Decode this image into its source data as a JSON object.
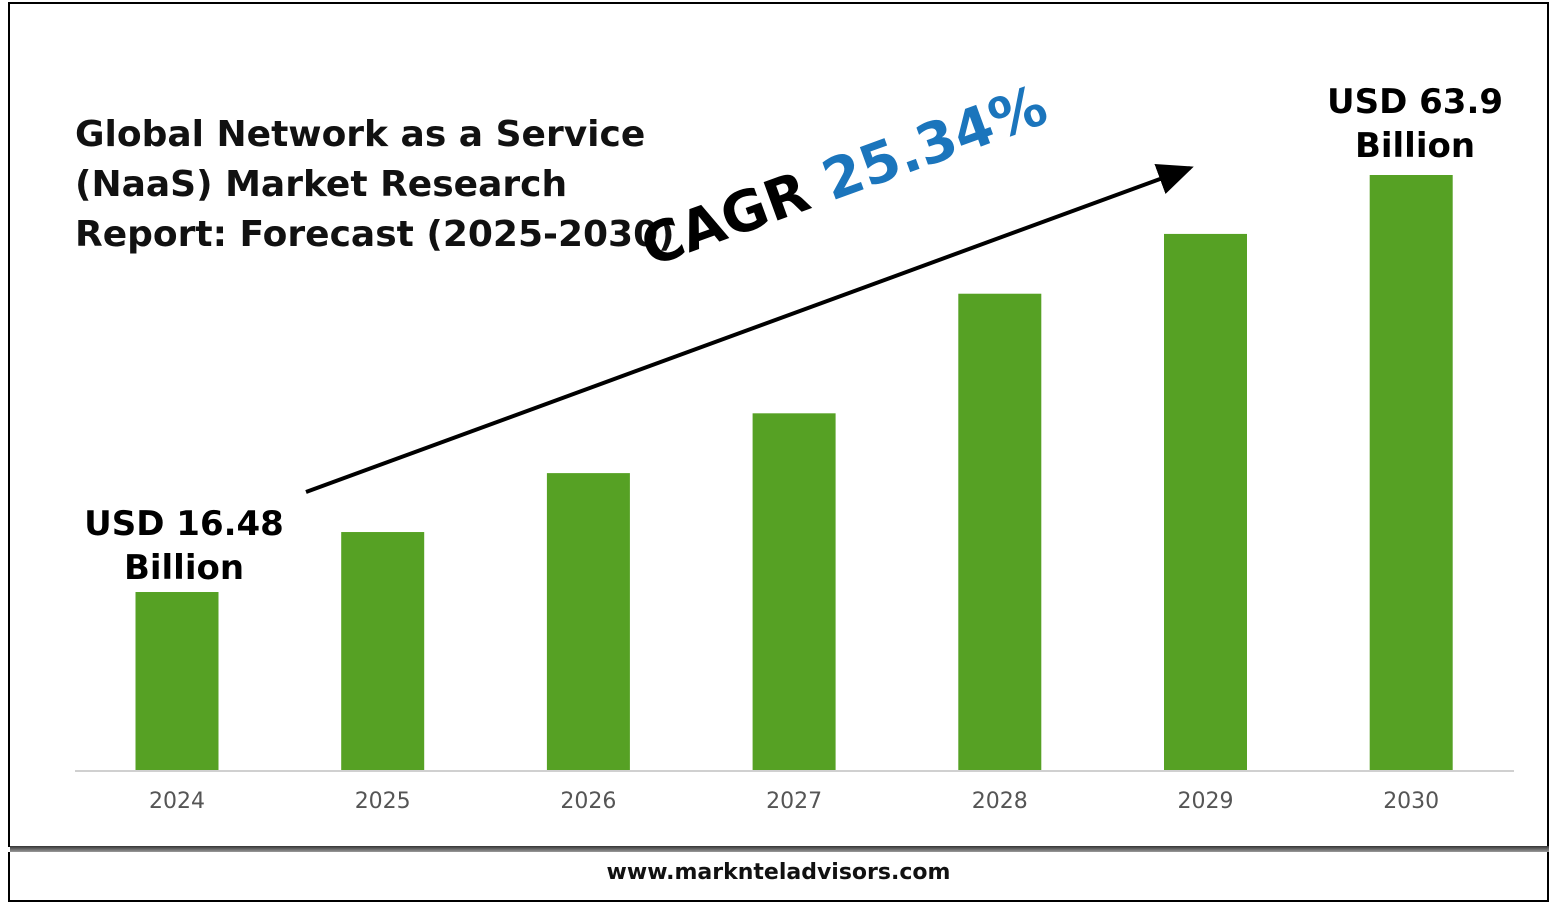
{
  "chart_data": {
    "type": "bar",
    "title": "Global Network as a Service\n(NaaS) Market Research\nReport: Forecast (2025-2030)",
    "categories": [
      "2024",
      "2025",
      "2026",
      "2027",
      "2028",
      "2029",
      "2030"
    ],
    "values": [
      16.48,
      23.3,
      30.0,
      36.8,
      50.4,
      57.2,
      63.9
    ],
    "unit": "USD Billion",
    "bar_color": "#56a124",
    "annotations": {
      "start_label_line1": "USD 16.48",
      "start_label_line2": "Billion",
      "end_label_line1": "USD 63.9",
      "end_label_line2": "Billion",
      "cagr_prefix": "CAGR",
      "cagr_value": "25.34%",
      "cagr_color": "#1b75bc"
    },
    "grid": false,
    "legend": "none"
  },
  "footer": {
    "website": "www.marknteladvisors.com"
  }
}
